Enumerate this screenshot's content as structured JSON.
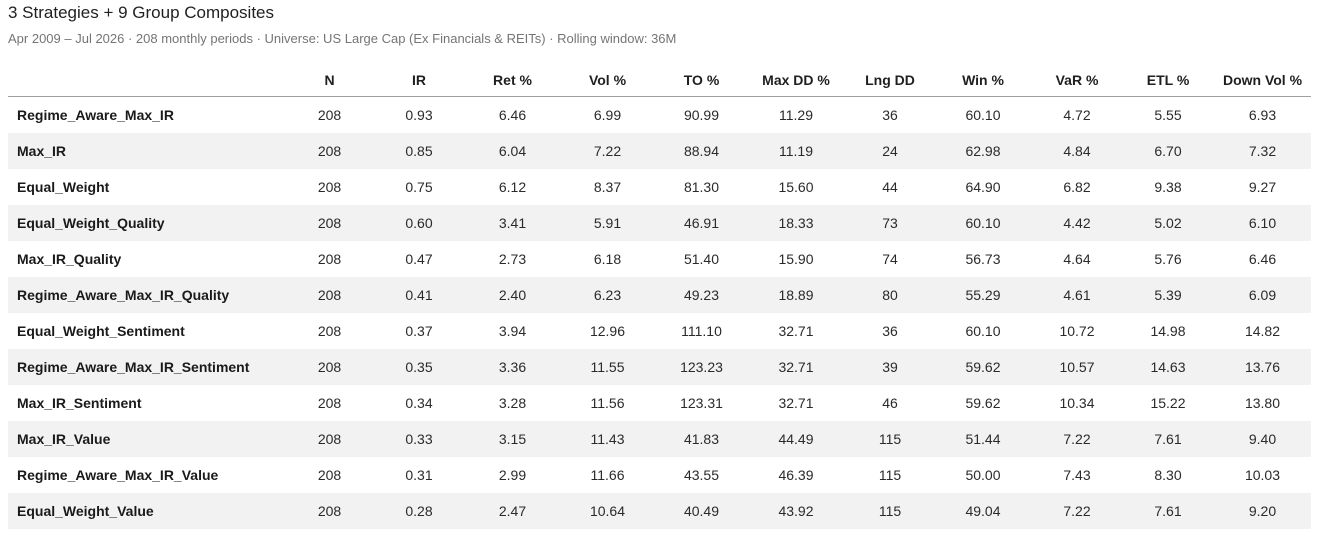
{
  "header": {
    "title": "3 Strategies + 9 Group Composites",
    "subtitle": "Apr 2009 – Jul 2026 · 208 monthly periods · Universe: US Large Cap (Ex Financials & REITs) · Rolling window: 36M"
  },
  "table": {
    "columns": [
      "",
      "N",
      "IR",
      "Ret %",
      "Vol %",
      "TO %",
      "Max DD %",
      "Lng DD",
      "Win %",
      "VaR %",
      "ETL %",
      "Down Vol %"
    ],
    "rows": [
      [
        "Regime_Aware_Max_IR",
        "208",
        "0.93",
        "6.46",
        "6.99",
        "90.99",
        "11.29",
        "36",
        "60.10",
        "4.72",
        "5.55",
        "6.93"
      ],
      [
        "Max_IR",
        "208",
        "0.85",
        "6.04",
        "7.22",
        "88.94",
        "11.19",
        "24",
        "62.98",
        "4.84",
        "6.70",
        "7.32"
      ],
      [
        "Equal_Weight",
        "208",
        "0.75",
        "6.12",
        "8.37",
        "81.30",
        "15.60",
        "44",
        "64.90",
        "6.82",
        "9.38",
        "9.27"
      ],
      [
        "Equal_Weight_Quality",
        "208",
        "0.60",
        "3.41",
        "5.91",
        "46.91",
        "18.33",
        "73",
        "60.10",
        "4.42",
        "5.02",
        "6.10"
      ],
      [
        "Max_IR_Quality",
        "208",
        "0.47",
        "2.73",
        "6.18",
        "51.40",
        "15.90",
        "74",
        "56.73",
        "4.64",
        "5.76",
        "6.46"
      ],
      [
        "Regime_Aware_Max_IR_Quality",
        "208",
        "0.41",
        "2.40",
        "6.23",
        "49.23",
        "18.89",
        "80",
        "55.29",
        "4.61",
        "5.39",
        "6.09"
      ],
      [
        "Equal_Weight_Sentiment",
        "208",
        "0.37",
        "3.94",
        "12.96",
        "111.10",
        "32.71",
        "36",
        "60.10",
        "10.72",
        "14.98",
        "14.82"
      ],
      [
        "Regime_Aware_Max_IR_Sentiment",
        "208",
        "0.35",
        "3.36",
        "11.55",
        "123.23",
        "32.71",
        "39",
        "59.62",
        "10.57",
        "14.63",
        "13.76"
      ],
      [
        "Max_IR_Sentiment",
        "208",
        "0.34",
        "3.28",
        "11.56",
        "123.31",
        "32.71",
        "46",
        "59.62",
        "10.34",
        "15.22",
        "13.80"
      ],
      [
        "Max_IR_Value",
        "208",
        "0.33",
        "3.15",
        "11.43",
        "41.83",
        "44.49",
        "115",
        "51.44",
        "7.22",
        "7.61",
        "9.40"
      ],
      [
        "Regime_Aware_Max_IR_Value",
        "208",
        "0.31",
        "2.99",
        "11.66",
        "43.55",
        "46.39",
        "115",
        "50.00",
        "7.43",
        "8.30",
        "10.03"
      ],
      [
        "Equal_Weight_Value",
        "208",
        "0.28",
        "2.47",
        "10.64",
        "40.49",
        "43.92",
        "115",
        "49.04",
        "7.22",
        "7.61",
        "9.20"
      ]
    ]
  }
}
